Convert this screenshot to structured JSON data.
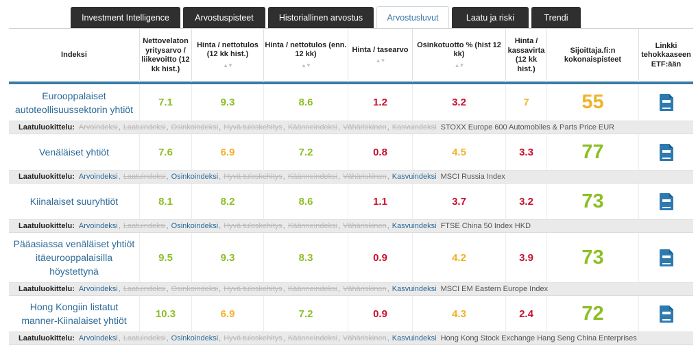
{
  "tabs": [
    {
      "label": "Investment Intelligence",
      "active": false
    },
    {
      "label": "Arvostuspisteet",
      "active": false
    },
    {
      "label": "Historiallinen arvostus",
      "active": false
    },
    {
      "label": "Arvostusluvut",
      "active": true
    },
    {
      "label": "Laatu ja riski",
      "active": false
    },
    {
      "label": "Trendi",
      "active": false
    }
  ],
  "headers": [
    "Indeksi",
    "Nettovelaton yritysarvo / liikevoitto (12 kk hist.)",
    "Hinta / nettotulos (12 kk hist.)",
    "Hinta / nettotulos (enn. 12 kk)",
    "Hinta / tasearvo",
    "Osinkotuotto % (hist 12 kk)",
    "Hinta / kassavirta (12 kk hist.)",
    "Sijoittaja.fi:n kokonaispisteet",
    "Linkki tehokkaaseen ETF:ään"
  ],
  "sort_arrows": "▲▼",
  "quality_label": "Laatuluokittelu:",
  "colors": {
    "green": "#8cbf26",
    "orange": "#f0b32b",
    "red": "#c8102e",
    "link": "#2c6a98",
    "accent": "#3a7ca5"
  },
  "rows": [
    {
      "name": "Eurooppalaiset autoteollisuussektorin yhtiöt",
      "values": [
        {
          "v": "7.1",
          "c": "green"
        },
        {
          "v": "9.3",
          "c": "green"
        },
        {
          "v": "8.6",
          "c": "green"
        },
        {
          "v": "1.2",
          "c": "red"
        },
        {
          "v": "3.2",
          "c": "red"
        },
        {
          "v": "7",
          "c": "orange"
        }
      ],
      "score": {
        "v": "55",
        "c": "orange"
      },
      "etf_icon": "document-icon",
      "quality": [
        {
          "t": "Arvoindeksi",
          "on": false
        },
        {
          "t": "Laatuindeksi",
          "on": false
        },
        {
          "t": "Osinkoindeksi",
          "on": false
        },
        {
          "t": "Hyvä tuloskehitys",
          "on": false
        },
        {
          "t": "Käänneindeksi",
          "on": false
        },
        {
          "t": "Vähäriskinen",
          "on": false
        },
        {
          "t": "Kasvuindeksi",
          "on": false
        }
      ],
      "benchmark": "STOXX Europe 600 Automobiles & Parts Price EUR"
    },
    {
      "name": "Venäläiset yhtiöt",
      "values": [
        {
          "v": "7.6",
          "c": "green"
        },
        {
          "v": "6.9",
          "c": "orange"
        },
        {
          "v": "7.2",
          "c": "green"
        },
        {
          "v": "0.8",
          "c": "red"
        },
        {
          "v": "4.5",
          "c": "orange"
        },
        {
          "v": "3.3",
          "c": "red"
        }
      ],
      "score": {
        "v": "77",
        "c": "green"
      },
      "etf_icon": "document-icon",
      "quality": [
        {
          "t": "Arvoindeksi",
          "on": true
        },
        {
          "t": "Laatuindeksi",
          "on": false
        },
        {
          "t": "Osinkoindeksi",
          "on": true
        },
        {
          "t": "Hyvä tuloskehitys",
          "on": false
        },
        {
          "t": "Käänneindeksi",
          "on": false
        },
        {
          "t": "Vähäriskinen",
          "on": false
        },
        {
          "t": "Kasvuindeksi",
          "on": true
        }
      ],
      "benchmark": "MSCI Russia Index"
    },
    {
      "name": "Kiinalaiset suuryhtiöt",
      "values": [
        {
          "v": "8.1",
          "c": "green"
        },
        {
          "v": "8.2",
          "c": "green"
        },
        {
          "v": "8.6",
          "c": "green"
        },
        {
          "v": "1.1",
          "c": "red"
        },
        {
          "v": "3.7",
          "c": "red"
        },
        {
          "v": "3.2",
          "c": "red"
        }
      ],
      "score": {
        "v": "73",
        "c": "green"
      },
      "etf_icon": "document-icon",
      "quality": [
        {
          "t": "Arvoindeksi",
          "on": true
        },
        {
          "t": "Laatuindeksi",
          "on": false
        },
        {
          "t": "Osinkoindeksi",
          "on": true
        },
        {
          "t": "Hyvä tuloskehitys",
          "on": false
        },
        {
          "t": "Käänneindeksi",
          "on": false
        },
        {
          "t": "Vähäriskinen",
          "on": false
        },
        {
          "t": "Kasvuindeksi",
          "on": true
        }
      ],
      "benchmark": "FTSE China 50 Index HKD"
    },
    {
      "name": "Pääasiassa venäläiset yhtiöt itäeurooppalaisilla höystettynä",
      "values": [
        {
          "v": "9.5",
          "c": "green"
        },
        {
          "v": "9.3",
          "c": "green"
        },
        {
          "v": "8.3",
          "c": "green"
        },
        {
          "v": "0.9",
          "c": "red"
        },
        {
          "v": "4.2",
          "c": "orange"
        },
        {
          "v": "3.9",
          "c": "red"
        }
      ],
      "score": {
        "v": "73",
        "c": "green"
      },
      "etf_icon": "document-icon",
      "quality": [
        {
          "t": "Arvoindeksi",
          "on": true
        },
        {
          "t": "Laatuindeksi",
          "on": false
        },
        {
          "t": "Osinkoindeksi",
          "on": false
        },
        {
          "t": "Hyvä tuloskehitys",
          "on": false
        },
        {
          "t": "Käänneindeksi",
          "on": false
        },
        {
          "t": "Vähäriskinen",
          "on": false
        },
        {
          "t": "Kasvuindeksi",
          "on": true
        }
      ],
      "benchmark": "MSCI EM Eastern Europe Index"
    },
    {
      "name": "Hong Kongiin listatut manner-Kiinalaiset yhtiöt",
      "values": [
        {
          "v": "10.3",
          "c": "green"
        },
        {
          "v": "6.9",
          "c": "orange"
        },
        {
          "v": "7.2",
          "c": "green"
        },
        {
          "v": "0.9",
          "c": "red"
        },
        {
          "v": "4.3",
          "c": "orange"
        },
        {
          "v": "2.4",
          "c": "red"
        }
      ],
      "score": {
        "v": "72",
        "c": "green"
      },
      "etf_icon": "document-icon",
      "quality": [
        {
          "t": "Arvoindeksi",
          "on": true
        },
        {
          "t": "Laatuindeksi",
          "on": false
        },
        {
          "t": "Osinkoindeksi",
          "on": true
        },
        {
          "t": "Hyvä tuloskehitys",
          "on": false
        },
        {
          "t": "Käänneindeksi",
          "on": false
        },
        {
          "t": "Vähäriskinen",
          "on": false
        },
        {
          "t": "Kasvuindeksi",
          "on": true
        }
      ],
      "benchmark": "Hong Kong Stock Exchange Hang Seng China Enterprises"
    }
  ]
}
